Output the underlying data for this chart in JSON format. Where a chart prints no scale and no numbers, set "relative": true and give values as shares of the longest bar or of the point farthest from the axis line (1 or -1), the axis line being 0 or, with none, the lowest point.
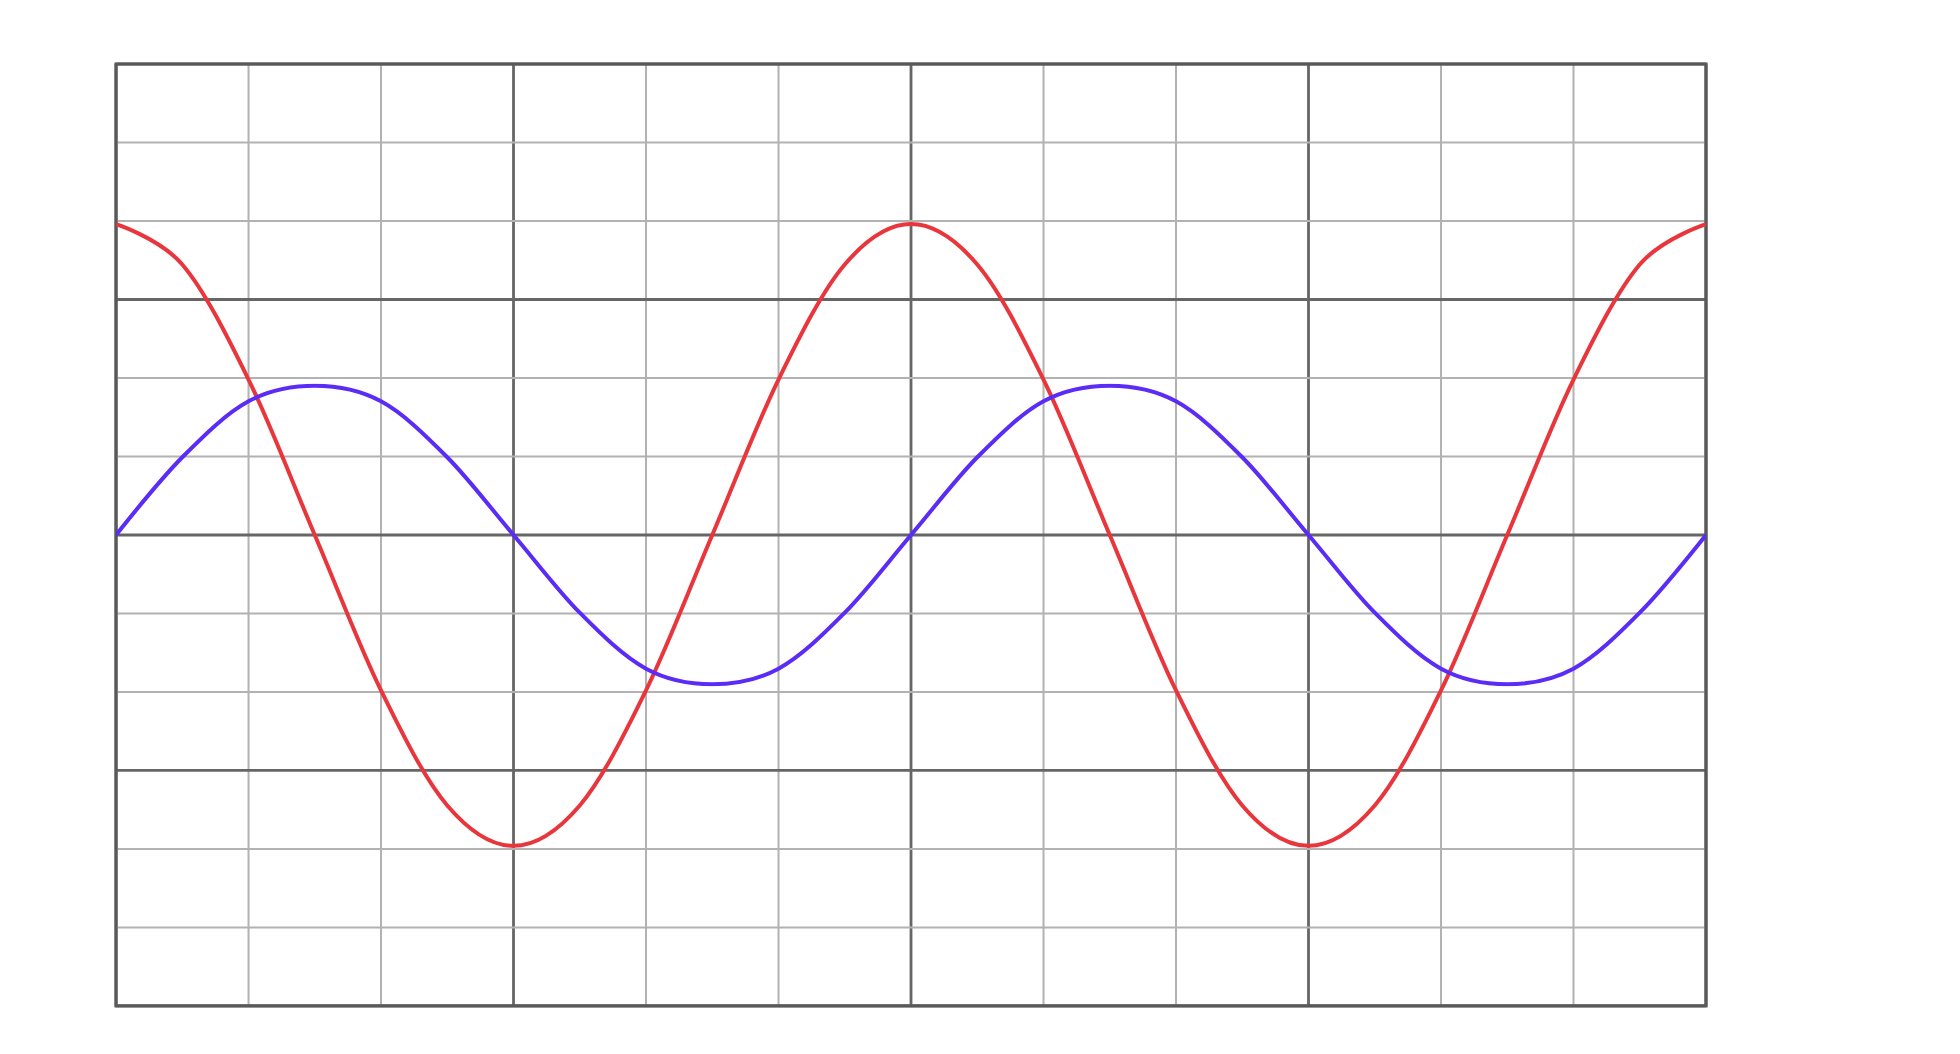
{
  "chart_data": {
    "type": "line",
    "relative": true,
    "grid": true,
    "marker": "none",
    "line_style": "solid",
    "categories": [
      null,
      null,
      null,
      null,
      null,
      null,
      null,
      null,
      null,
      null,
      null,
      null,
      null,
      null,
      null,
      null,
      null,
      null,
      null,
      null,
      null,
      null,
      null,
      null,
      null
    ],
    "series": [
      {
        "color": "#e8363c",
        "values": [
          1,
          0.87,
          0.5,
          0,
          -0.5,
          -0.87,
          -1,
          -0.87,
          -0.5,
          0,
          0.5,
          0.87,
          1,
          0.87,
          0.5,
          0,
          -0.5,
          -0.87,
          -1,
          -0.87,
          -0.5,
          0,
          0.5,
          0.87,
          1
        ]
      },
      {
        "color": "#5a2cf5",
        "values": [
          0,
          0.25,
          0.43,
          0.48,
          0.43,
          0.25,
          0,
          -0.25,
          -0.43,
          -0.48,
          -0.43,
          -0.25,
          0,
          0.25,
          0.43,
          0.48,
          0.43,
          0.25,
          0,
          -0.25,
          -0.43,
          -0.48,
          -0.43,
          -0.25,
          0
        ]
      }
    ]
  }
}
